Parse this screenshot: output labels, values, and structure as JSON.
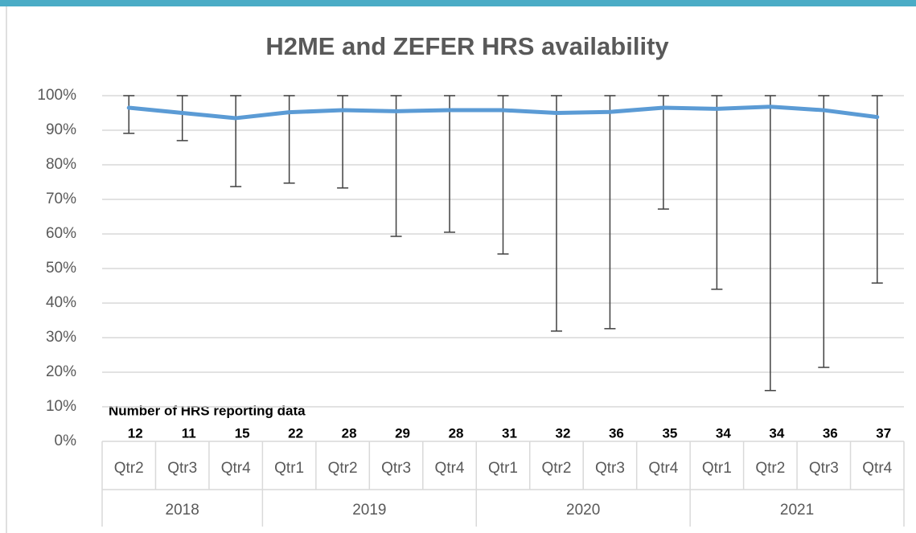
{
  "chart_data": {
    "type": "line",
    "title": "H2ME and ZEFER HRS availability",
    "groups": [
      {
        "name": "2018",
        "categories": [
          "Qtr2",
          "Qtr3",
          "Qtr4"
        ]
      },
      {
        "name": "2019",
        "categories": [
          "Qtr1",
          "Qtr2",
          "Qtr3",
          "Qtr4"
        ]
      },
      {
        "name": "2020",
        "categories": [
          "Qtr1",
          "Qtr2",
          "Qtr3",
          "Qtr4"
        ]
      },
      {
        "name": "2021",
        "categories": [
          "Qtr1",
          "Qtr2",
          "Qtr3",
          "Qtr4"
        ]
      }
    ],
    "values": [
      96.5,
      95,
      93.5,
      95.2,
      95.8,
      95.5,
      95.8,
      95.8,
      95,
      95.3,
      96.5,
      96.2,
      96.8,
      95.8,
      93.8
    ],
    "min": [
      89.1,
      87,
      73.7,
      74.7,
      73.3,
      59.3,
      60.5,
      54.2,
      31.9,
      32.6,
      67.2,
      44,
      14.7,
      21.4,
      45.8
    ],
    "max": [
      100,
      100,
      100,
      100,
      100,
      100,
      100,
      100,
      100,
      100,
      100,
      100,
      100,
      100,
      100
    ],
    "color": "#5b9bd5",
    "error_color": "#404040",
    "counts_label": "Number of HRS reporting data",
    "counts": [
      12,
      11,
      15,
      22,
      28,
      29,
      28,
      31,
      32,
      36,
      35,
      34,
      34,
      36,
      37
    ],
    "ylim": [
      0,
      100
    ],
    "yticks": [
      {
        "value": 0,
        "label": "0%"
      },
      {
        "value": 10,
        "label": "10%"
      },
      {
        "value": 20,
        "label": "20%"
      },
      {
        "value": 30,
        "label": "30%"
      },
      {
        "value": 40,
        "label": "40%"
      },
      {
        "value": 50,
        "label": "50%"
      },
      {
        "value": 60,
        "label": "60%"
      },
      {
        "value": 70,
        "label": "70%"
      },
      {
        "value": 80,
        "label": "80%"
      },
      {
        "value": 90,
        "label": "90%"
      },
      {
        "value": 100,
        "label": "100%"
      }
    ],
    "grid": true
  }
}
